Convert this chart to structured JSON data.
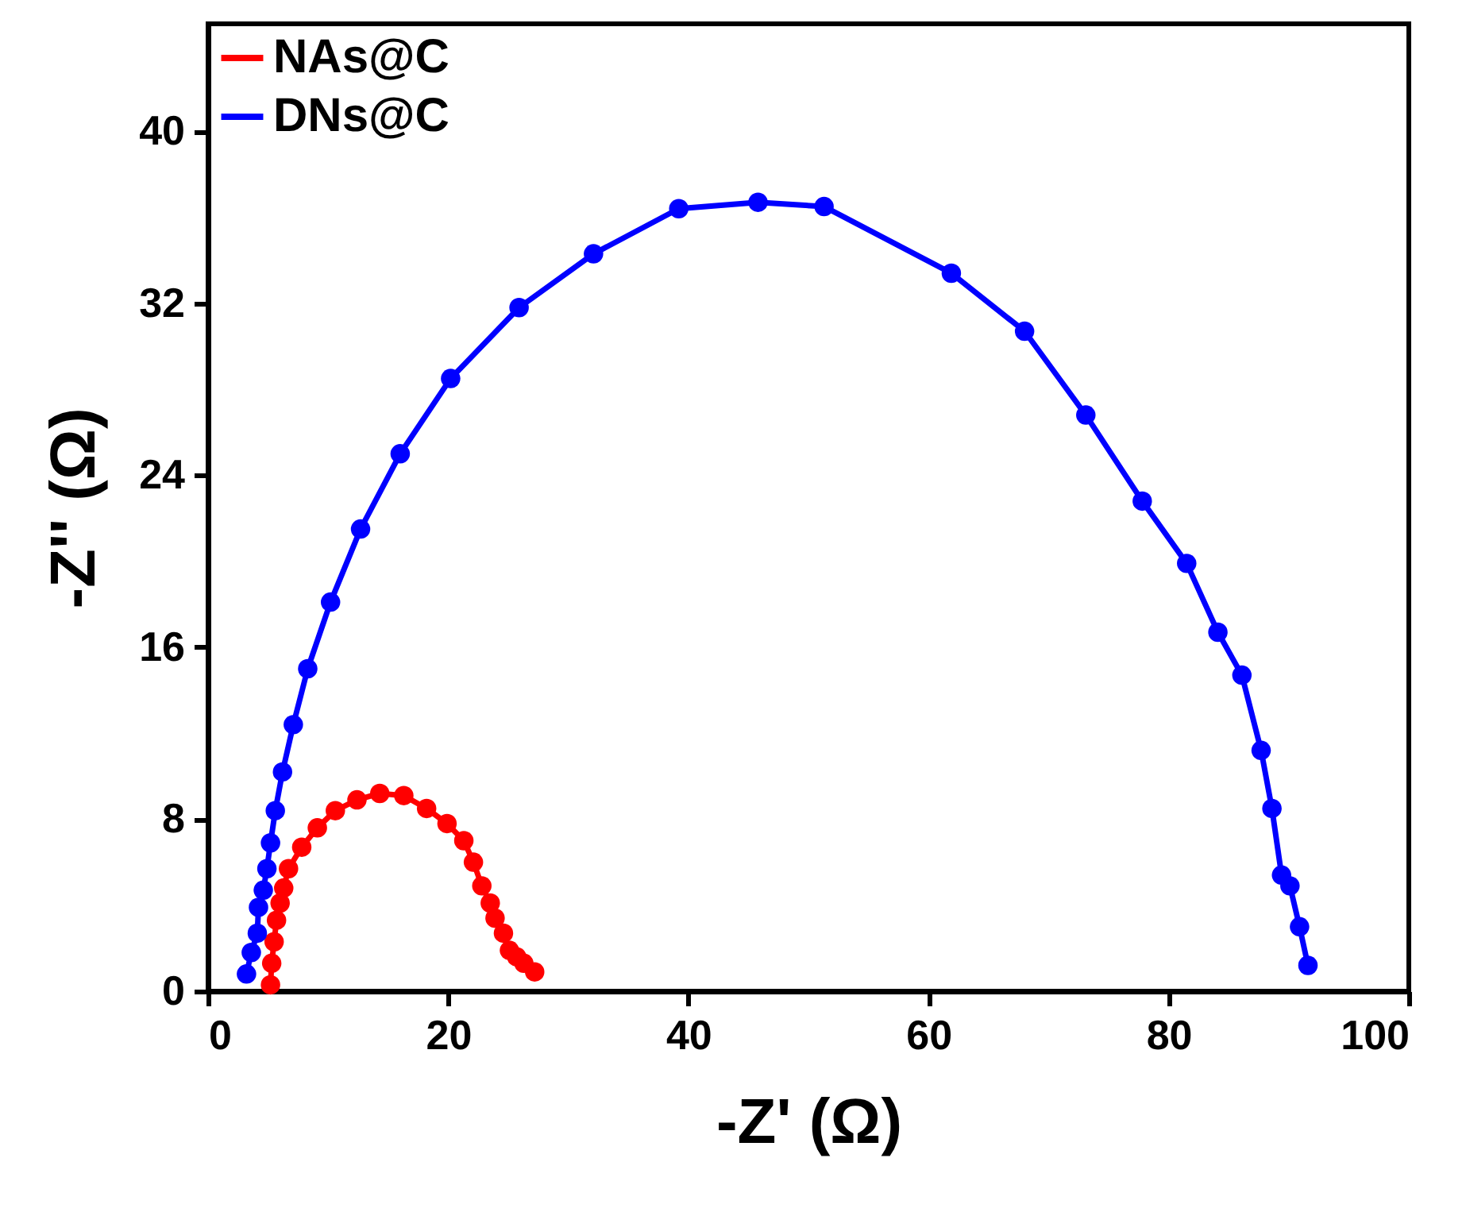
{
  "chart_data": {
    "type": "line",
    "xlabel": "-Z' (Ω)",
    "ylabel": "-Z'' (Ω)",
    "xlim": [
      0,
      100
    ],
    "ylim": [
      0,
      45
    ],
    "xticks": [
      0,
      20,
      40,
      60,
      80,
      100
    ],
    "yticks": [
      0,
      8,
      16,
      24,
      32,
      40
    ],
    "grid": false,
    "legend": "top left",
    "marker": "circle",
    "line_style": "solid",
    "series": [
      {
        "name": "NAs@C",
        "color": "#ff0000",
        "x": [
          5.2,
          5.3,
          5.5,
          5.7,
          6.0,
          6.3,
          6.7,
          7.8,
          9.1,
          10.6,
          12.4,
          14.3,
          16.3,
          18.2,
          19.9,
          21.3,
          22.1,
          22.8,
          23.5,
          23.9,
          24.6,
          25.1,
          25.7,
          26.3,
          27.2
        ],
        "values": [
          0.3,
          1.3,
          2.3,
          3.3,
          4.1,
          4.8,
          5.7,
          6.7,
          7.6,
          8.4,
          8.9,
          9.2,
          9.1,
          8.5,
          7.8,
          7.0,
          6.0,
          4.9,
          4.1,
          3.4,
          2.7,
          1.9,
          1.6,
          1.3,
          0.9
        ]
      },
      {
        "name": "DNs@C",
        "color": "#0000ff",
        "x": [
          3.2,
          3.6,
          4.1,
          4.2,
          4.6,
          4.9,
          5.2,
          5.6,
          6.2,
          7.1,
          8.3,
          10.2,
          12.7,
          16.0,
          20.2,
          25.9,
          32.1,
          39.2,
          45.8,
          51.3,
          61.9,
          68.0,
          73.1,
          77.8,
          81.5,
          84.1,
          86.1,
          87.7,
          88.6,
          89.4,
          90.1,
          90.9,
          91.6
        ],
        "values": [
          0.8,
          1.8,
          2.7,
          3.9,
          4.7,
          5.7,
          6.9,
          8.4,
          10.2,
          12.4,
          15.0,
          18.1,
          21.5,
          25.0,
          28.5,
          31.8,
          34.3,
          36.4,
          36.7,
          36.5,
          33.4,
          30.7,
          26.8,
          22.8,
          19.9,
          16.7,
          14.7,
          11.2,
          8.5,
          5.4,
          4.9,
          3.0,
          1.2
        ]
      }
    ]
  }
}
